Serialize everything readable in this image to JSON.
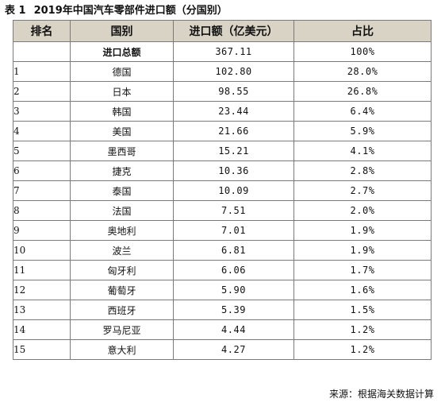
{
  "title": {
    "table_number": "表 1",
    "text": "2019年中国汽车零部件进口额（分国别）"
  },
  "columns": [
    "排名",
    "国别",
    "进口额（亿美元）",
    "占比"
  ],
  "total_row": {
    "rank": "",
    "country": "进口总额",
    "amount": "367.11",
    "share": "100%"
  },
  "rows": [
    {
      "rank": "1",
      "country": "德国",
      "amount": "102.80",
      "share": "28.0%"
    },
    {
      "rank": "2",
      "country": "日本",
      "amount": "98.55",
      "share": "26.8%"
    },
    {
      "rank": "3",
      "country": "韩国",
      "amount": "23.44",
      "share": "6.4%"
    },
    {
      "rank": "4",
      "country": "美国",
      "amount": "21.66",
      "share": "5.9%"
    },
    {
      "rank": "5",
      "country": "墨西哥",
      "amount": "15.21",
      "share": "4.1%"
    },
    {
      "rank": "6",
      "country": "捷克",
      "amount": "10.36",
      "share": "2.8%"
    },
    {
      "rank": "7",
      "country": "泰国",
      "amount": "10.09",
      "share": "2.7%"
    },
    {
      "rank": "8",
      "country": "法国",
      "amount": "7.51",
      "share": "2.0%"
    },
    {
      "rank": "9",
      "country": "奥地利",
      "amount": "7.01",
      "share": "1.9%"
    },
    {
      "rank": "10",
      "country": "波兰",
      "amount": "6.81",
      "share": "1.9%"
    },
    {
      "rank": "11",
      "country": "匈牙利",
      "amount": "6.06",
      "share": "1.7%"
    },
    {
      "rank": "12",
      "country": "葡萄牙",
      "amount": "5.90",
      "share": "1.6%"
    },
    {
      "rank": "13",
      "country": "西班牙",
      "amount": "5.39",
      "share": "1.5%"
    },
    {
      "rank": "14",
      "country": "罗马尼亚",
      "amount": "4.44",
      "share": "1.2%"
    },
    {
      "rank": "15",
      "country": "意大利",
      "amount": "4.27",
      "share": "1.2%"
    }
  ],
  "source": "来源：根据海关数据计算",
  "colors": {
    "header_background": "#d8d3c4",
    "border": "#7a7a7a",
    "text": "#111111"
  }
}
